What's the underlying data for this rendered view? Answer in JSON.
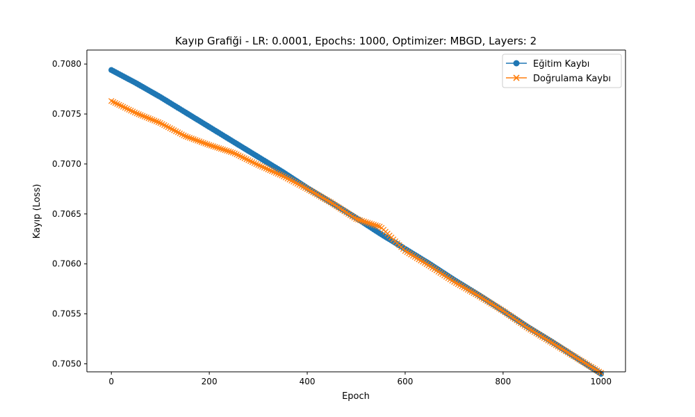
{
  "chart_data": {
    "type": "line",
    "title": "Kayıp Grafiği - LR: 0.0001, Epochs: 1000, Optimizer: MBGD, Layers: 2",
    "xlabel": "Epoch",
    "ylabel": "Kayıp (Loss)",
    "xlim": [
      -50,
      1050
    ],
    "ylim": [
      0.70492,
      0.70814
    ],
    "x_ticks": [
      0,
      200,
      400,
      600,
      800,
      1000
    ],
    "x_tick_labels": [
      "0",
      "200",
      "400",
      "600",
      "800",
      "1000"
    ],
    "y_ticks": [
      0.705,
      0.7055,
      0.706,
      0.7065,
      0.707,
      0.7075,
      0.708
    ],
    "y_tick_labels": [
      "0.7050",
      "0.7055",
      "0.7060",
      "0.7065",
      "0.7070",
      "0.7075",
      "0.7080"
    ],
    "grid": false,
    "legend_position": "top-right",
    "series": [
      {
        "name": "Eğitim Kaybı",
        "color": "#1f77b4",
        "marker": "circle",
        "x": [
          0,
          50,
          100,
          150,
          200,
          250,
          300,
          350,
          400,
          450,
          500,
          550,
          600,
          650,
          700,
          750,
          800,
          850,
          900,
          950,
          1000
        ],
        "values": [
          0.70794,
          0.70781,
          0.70767,
          0.70752,
          0.70737,
          0.70722,
          0.70707,
          0.70692,
          0.70676,
          0.70661,
          0.70646,
          0.7063,
          0.70615,
          0.706,
          0.70584,
          0.70569,
          0.70553,
          0.70537,
          0.70522,
          0.70506,
          0.7049
        ]
      },
      {
        "name": "Doğrulama Kaybı",
        "color": "#ff7f0e",
        "marker": "x",
        "x": [
          0,
          50,
          100,
          150,
          200,
          250,
          300,
          350,
          400,
          450,
          500,
          550,
          600,
          650,
          700,
          750,
          800,
          850,
          900,
          950,
          1000
        ],
        "values": [
          0.70763,
          0.70751,
          0.70741,
          0.70728,
          0.70719,
          0.70711,
          0.70699,
          0.70688,
          0.70675,
          0.70661,
          0.70645,
          0.70637,
          0.70613,
          0.70598,
          0.70582,
          0.70568,
          0.70553,
          0.70536,
          0.70521,
          0.70506,
          0.70491
        ]
      }
    ]
  }
}
